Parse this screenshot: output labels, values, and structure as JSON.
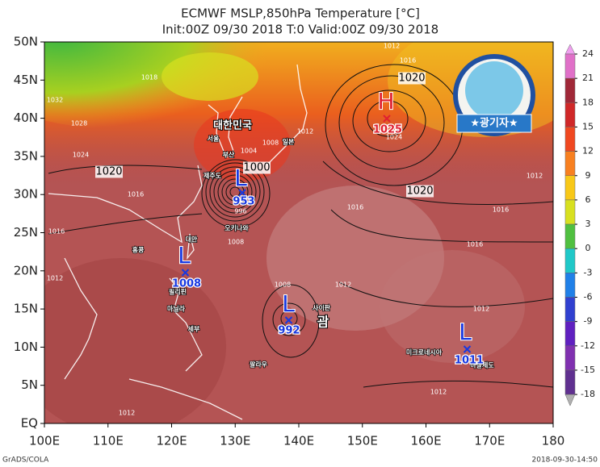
{
  "title": [
    "ECMWF MSLP,850hPa Temperature [°C]",
    "Init:00Z 09/30 2018 T:0 Valid:00Z 09/30 2018"
  ],
  "lat_labels": [
    "50N",
    "45N",
    "40N",
    "35N",
    "30N",
    "25N",
    "20N",
    "15N",
    "10N",
    "5N",
    "EQ"
  ],
  "lon_labels": [
    "100E",
    "110E",
    "120E",
    "130E",
    "140E",
    "150E",
    "160E",
    "170E",
    "180"
  ],
  "colorbar": {
    "ticks": [
      24,
      21,
      18,
      15,
      12,
      9,
      6,
      3,
      0,
      -3,
      -6,
      -9,
      -12,
      -15,
      -18
    ],
    "colors": [
      "#f0a0f0",
      "#e070c8",
      "#a02838",
      "#d02828",
      "#f04820",
      "#f88020",
      "#f8c818",
      "#d8e020",
      "#50c040",
      "#20c8c8",
      "#2080e8",
      "#3040d0",
      "#6020c0",
      "#8030b0",
      "#603090",
      "#b0b0b0"
    ]
  },
  "systems": [
    {
      "letter": "L",
      "pressure": 953,
      "color": "#1838e0"
    },
    {
      "letter": "L",
      "pressure": 1008,
      "color": "#1838e0"
    },
    {
      "letter": "L",
      "pressure": 992,
      "color": "#1838e0"
    },
    {
      "letter": "L",
      "pressure": 1011,
      "color": "#1838e0"
    },
    {
      "letter": "H",
      "pressure": 1025,
      "color": "#e02030"
    }
  ],
  "isobar_labels": [
    1012,
    1016,
    1018,
    1032,
    1028,
    1024,
    1020,
    1016,
    1016,
    1012,
    1020,
    1024,
    1012,
    1004,
    1008,
    1000,
    996,
    1008,
    1016,
    1012,
    1016,
    1016,
    1020,
    1008,
    1012,
    1012,
    1012,
    1012
  ],
  "places": [
    "대한민국",
    "서울",
    "부산",
    "일본",
    "제주도",
    "오키나와",
    "대만",
    "홍콩",
    "필리핀",
    "마닐라",
    "세부",
    "사이판",
    "괌",
    "팔라우",
    "미크로네시아",
    "마샬제도"
  ],
  "badge": "★광기자★",
  "footer": {
    "left": "GrADS/COLA",
    "right": "2018-09-30-14:50"
  }
}
